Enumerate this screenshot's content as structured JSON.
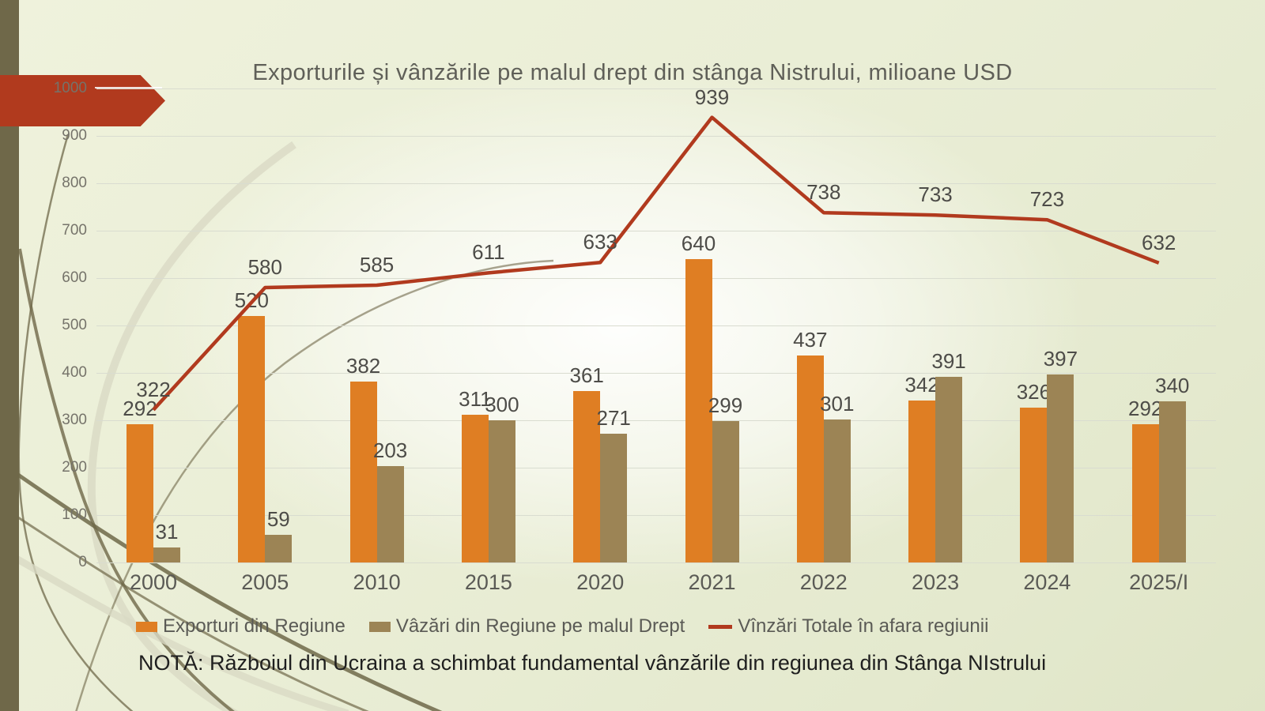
{
  "slide": {
    "title": "Exporturile și vânzările pe malul drept din stânga Nistrului, milioane USD",
    "note": "NOTĂ: Războiul din Ucraina a schimbat fundamental vânzările din regiunea din Stânga NIstrului"
  },
  "colors": {
    "accent_red": "#B13A1E",
    "bar_orange": "#DF7E23",
    "bar_olive": "#9C8455",
    "sidebar_olive": "#6F6849",
    "gridline": "#D9DCD0"
  },
  "chart_data": {
    "type": "bar",
    "subtype": "grouped bars with overlaid line",
    "title": "Exporturile și vânzările pe malul drept din stânga Nistrului, milioane USD",
    "categories": [
      "2000",
      "2005",
      "2010",
      "2015",
      "2020",
      "2021",
      "2022",
      "2023",
      "2024",
      "2025/I"
    ],
    "series": [
      {
        "name": "Exporturi din Regiune",
        "kind": "bar",
        "color": "#DF7E23",
        "values": [
          292,
          520,
          382,
          311,
          361,
          640,
          437,
          342,
          326,
          292
        ]
      },
      {
        "name": "Vâzări din Regiune pe malul Drept",
        "kind": "bar",
        "color": "#9C8455",
        "values": [
          31,
          59,
          203,
          300,
          271,
          299,
          301,
          391,
          397,
          340
        ]
      },
      {
        "name": "Vînzări Totale în afara regiunii",
        "kind": "line",
        "color": "#B13A1E",
        "values": [
          322,
          580,
          585,
          611,
          633,
          939,
          738,
          733,
          723,
          632
        ]
      }
    ],
    "yticks": [
      0,
      100,
      200,
      300,
      400,
      500,
      600,
      700,
      800,
      900,
      1000
    ],
    "ylim": [
      0,
      1000
    ],
    "xlabel": "",
    "ylabel": "",
    "grid": true,
    "legend_position": "bottom",
    "data_labels": true
  }
}
